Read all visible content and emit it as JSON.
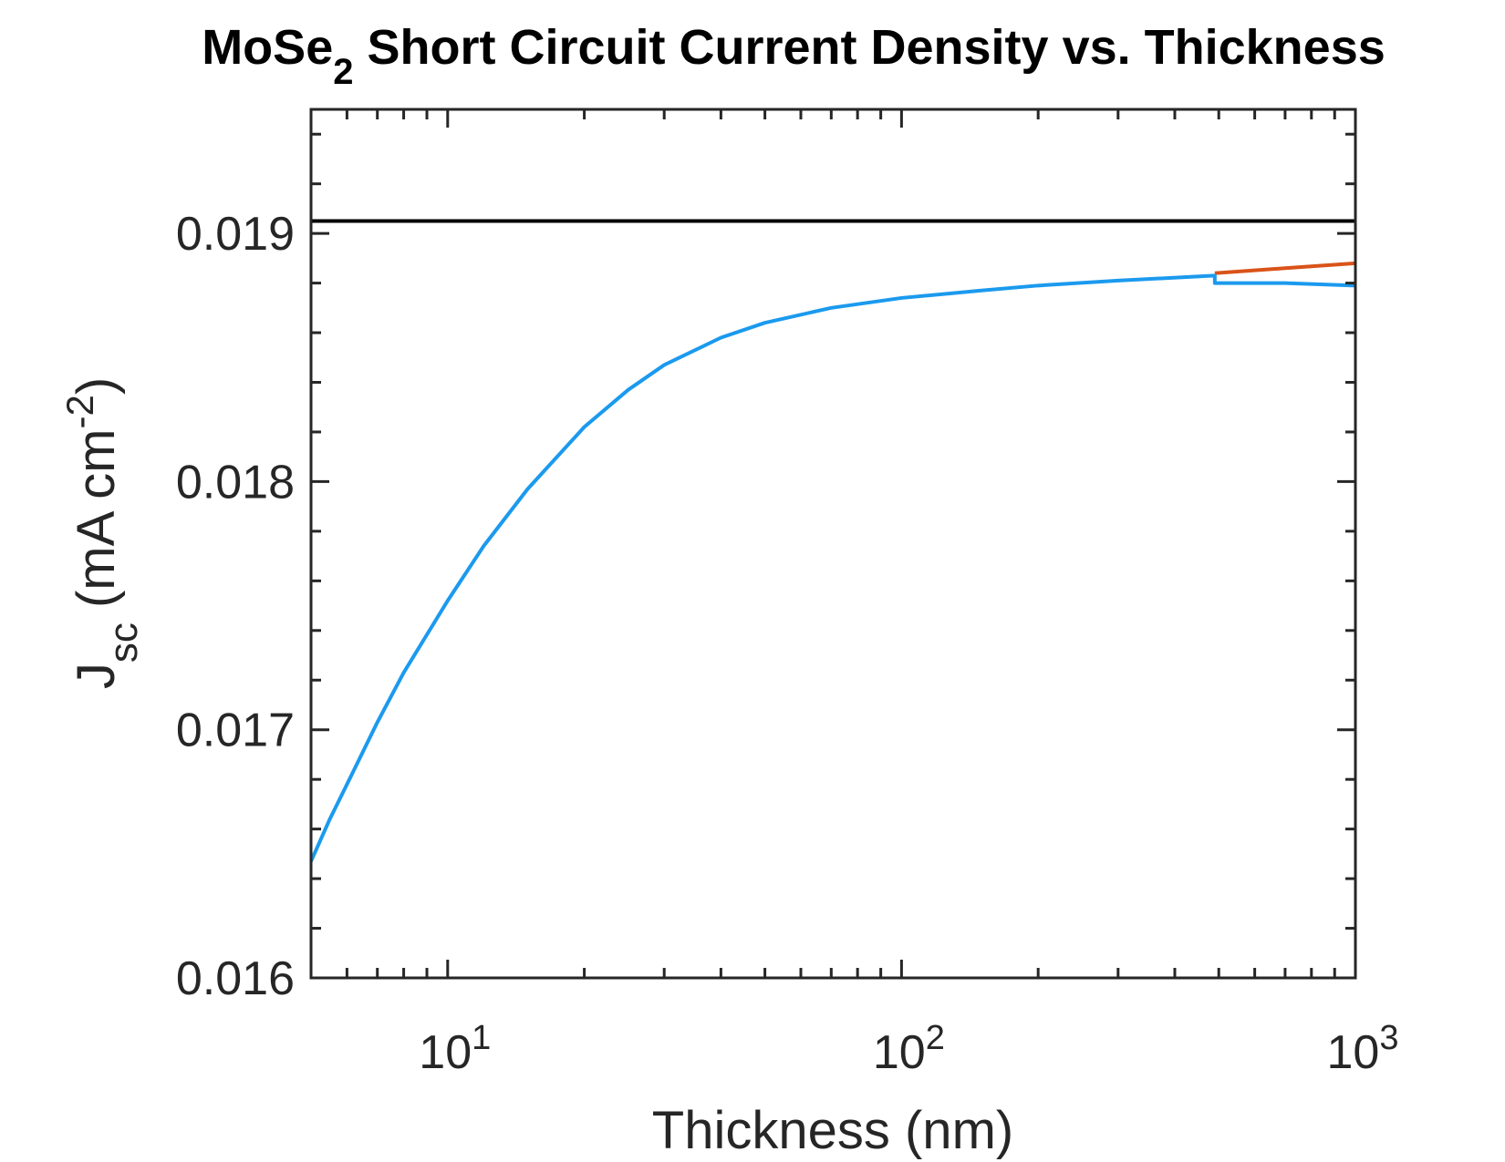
{
  "chart_data": {
    "type": "line",
    "title": "MoSe",
    "title_sub": "2",
    "title_rest": " Short Circuit Current Density vs. Thickness",
    "xlabel": "Thickness (nm)",
    "ylabel": {
      "main": "J",
      "sub": "sc",
      "units_start": " (mA cm",
      "units_sup": "-2",
      "units_end": ")"
    },
    "xscale": "log",
    "xlim": [
      5,
      1000
    ],
    "ylim": [
      0.016,
      0.0195
    ],
    "xticks": [
      {
        "value": 10,
        "base": "10",
        "exp": "1"
      },
      {
        "value": 100,
        "base": "10",
        "exp": "2"
      },
      {
        "value": 1000,
        "base": "10",
        "exp": "3"
      }
    ],
    "yticks": [
      {
        "value": 0.016,
        "label": "0.016"
      },
      {
        "value": 0.017,
        "label": "0.017"
      },
      {
        "value": 0.018,
        "label": "0.018"
      },
      {
        "value": 0.019,
        "label": "0.019"
      }
    ],
    "grid": false,
    "series": [
      {
        "color": "#1b9aee",
        "x": [
          5,
          5.5,
          6,
          7,
          8,
          10,
          12,
          15,
          20,
          25,
          30,
          40,
          50,
          70,
          100,
          150,
          200,
          300,
          490,
          490,
          700,
          1000
        ],
        "y": [
          0.01647,
          0.01664,
          0.01678,
          0.01703,
          0.01723,
          0.01752,
          0.01774,
          0.01797,
          0.01822,
          0.01837,
          0.01847,
          0.01858,
          0.01864,
          0.0187,
          0.01874,
          0.01877,
          0.01879,
          0.01881,
          0.01883,
          0.0188,
          0.0188,
          0.01879
        ]
      },
      {
        "color": "#d95319",
        "x": [
          490,
          700,
          1000
        ],
        "y": [
          0.01884,
          0.01886,
          0.01888
        ]
      },
      {
        "color": "#000000",
        "x": [
          5,
          1000
        ],
        "y": [
          0.01905,
          0.01905
        ]
      }
    ]
  }
}
